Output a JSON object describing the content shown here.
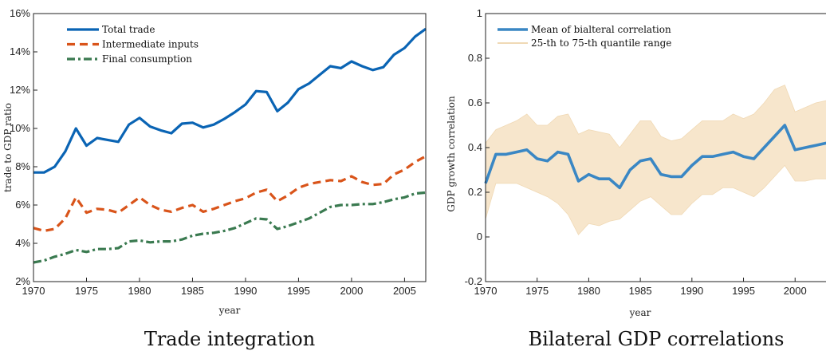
{
  "chart_data": [
    {
      "type": "line",
      "title": "",
      "caption": "Trade integration",
      "xlabel": "year",
      "ylabel": "trade to GDP ratio",
      "xlim": [
        1970,
        2007
      ],
      "ylim": [
        2,
        16
      ],
      "y_unit": "%",
      "xticks": [
        "1970",
        "1975",
        "1980",
        "1985",
        "1990",
        "1995",
        "2000",
        "2005"
      ],
      "yticks": [
        "2%",
        "4%",
        "6%",
        "8%",
        "10%",
        "12%",
        "14%",
        "16%"
      ],
      "legend_position": "top-left",
      "x": [
        1970,
        1971,
        1972,
        1973,
        1974,
        1975,
        1976,
        1977,
        1978,
        1979,
        1980,
        1981,
        1982,
        1983,
        1984,
        1985,
        1986,
        1987,
        1988,
        1989,
        1990,
        1991,
        1992,
        1993,
        1994,
        1995,
        1996,
        1997,
        1998,
        1999,
        2000,
        2001,
        2002,
        2003,
        2004,
        2005,
        2006,
        2007
      ],
      "series": [
        {
          "name": "Total trade",
          "color": "#0a64b4",
          "dash": "solid",
          "values": [
            7.7,
            7.7,
            8.0,
            8.8,
            10.0,
            9.1,
            9.5,
            9.4,
            9.3,
            10.2,
            10.55,
            10.1,
            9.9,
            9.75,
            10.25,
            10.3,
            10.05,
            10.2,
            10.5,
            10.85,
            11.25,
            11.95,
            11.9,
            10.9,
            11.35,
            12.05,
            12.35,
            12.8,
            13.25,
            13.15,
            13.5,
            13.25,
            13.05,
            13.2,
            13.85,
            14.2,
            14.8,
            15.2
          ]
        },
        {
          "name": "Intermediate inputs",
          "color": "#d9541a",
          "dash": "dashed",
          "values": [
            4.8,
            4.65,
            4.75,
            5.3,
            6.4,
            5.6,
            5.8,
            5.75,
            5.6,
            6.0,
            6.4,
            6.0,
            5.75,
            5.65,
            5.85,
            6.0,
            5.65,
            5.8,
            6.0,
            6.2,
            6.35,
            6.65,
            6.8,
            6.2,
            6.5,
            6.9,
            7.1,
            7.2,
            7.3,
            7.25,
            7.5,
            7.2,
            7.05,
            7.1,
            7.6,
            7.85,
            8.25,
            8.55
          ]
        },
        {
          "name": "Final consumption",
          "color": "#3a7a50",
          "dash": "dashdot",
          "values": [
            3.0,
            3.1,
            3.3,
            3.45,
            3.65,
            3.55,
            3.7,
            3.7,
            3.75,
            4.1,
            4.15,
            4.05,
            4.1,
            4.1,
            4.2,
            4.4,
            4.5,
            4.55,
            4.65,
            4.8,
            5.05,
            5.3,
            5.25,
            4.75,
            4.9,
            5.1,
            5.3,
            5.6,
            5.9,
            6.0,
            6.0,
            6.05,
            6.05,
            6.15,
            6.3,
            6.4,
            6.6,
            6.65
          ]
        }
      ]
    },
    {
      "type": "line",
      "title": "",
      "caption": "Bilateral GDP correlations",
      "xlabel": "year",
      "ylabel": "GDP growth correlation",
      "xlim": [
        1970,
        2004
      ],
      "ylim": [
        -0.2,
        1
      ],
      "xticks": [
        "1970",
        "1975",
        "1980",
        "1985",
        "1990",
        "1995",
        "2000"
      ],
      "yticks": [
        "-0.2",
        "0",
        "0.2",
        "0.4",
        "0.6",
        "0.8",
        "1"
      ],
      "legend_position": "top-left",
      "x": [
        1970,
        1971,
        1972,
        1973,
        1974,
        1975,
        1976,
        1977,
        1978,
        1979,
        1980,
        1981,
        1982,
        1983,
        1984,
        1985,
        1986,
        1987,
        1988,
        1989,
        1990,
        1991,
        1992,
        1993,
        1994,
        1995,
        1996,
        1997,
        1998,
        1999,
        2000,
        2001,
        2002,
        2003,
        2004
      ],
      "series": [
        {
          "name": "Mean of bialteral correlation",
          "color": "#3a87c4",
          "dash": "solid",
          "values": [
            0.24,
            0.37,
            0.37,
            0.38,
            0.39,
            0.35,
            0.34,
            0.38,
            0.37,
            0.25,
            0.28,
            0.26,
            0.26,
            0.22,
            0.3,
            0.34,
            0.35,
            0.28,
            0.27,
            0.27,
            0.32,
            0.36,
            0.36,
            0.37,
            0.38,
            0.36,
            0.35,
            0.4,
            0.45,
            0.5,
            0.39,
            0.4,
            0.41,
            0.42,
            0.41
          ]
        },
        {
          "name": "25-th to 75-th quantile range",
          "color": "#f7e6cc",
          "type": "band",
          "lower": [
            0.08,
            0.24,
            0.24,
            0.24,
            0.22,
            0.2,
            0.18,
            0.15,
            0.1,
            0.01,
            0.06,
            0.05,
            0.07,
            0.08,
            0.12,
            0.16,
            0.18,
            0.14,
            0.1,
            0.1,
            0.15,
            0.19,
            0.19,
            0.22,
            0.22,
            0.2,
            0.18,
            0.22,
            0.27,
            0.32,
            0.25,
            0.25,
            0.26,
            0.26,
            0.25
          ],
          "upper": [
            0.42,
            0.48,
            0.5,
            0.52,
            0.55,
            0.5,
            0.5,
            0.54,
            0.55,
            0.46,
            0.48,
            0.47,
            0.46,
            0.4,
            0.46,
            0.52,
            0.52,
            0.45,
            0.43,
            0.44,
            0.48,
            0.52,
            0.52,
            0.52,
            0.55,
            0.53,
            0.55,
            0.6,
            0.66,
            0.68,
            0.56,
            0.58,
            0.6,
            0.61,
            0.6
          ]
        }
      ]
    }
  ]
}
